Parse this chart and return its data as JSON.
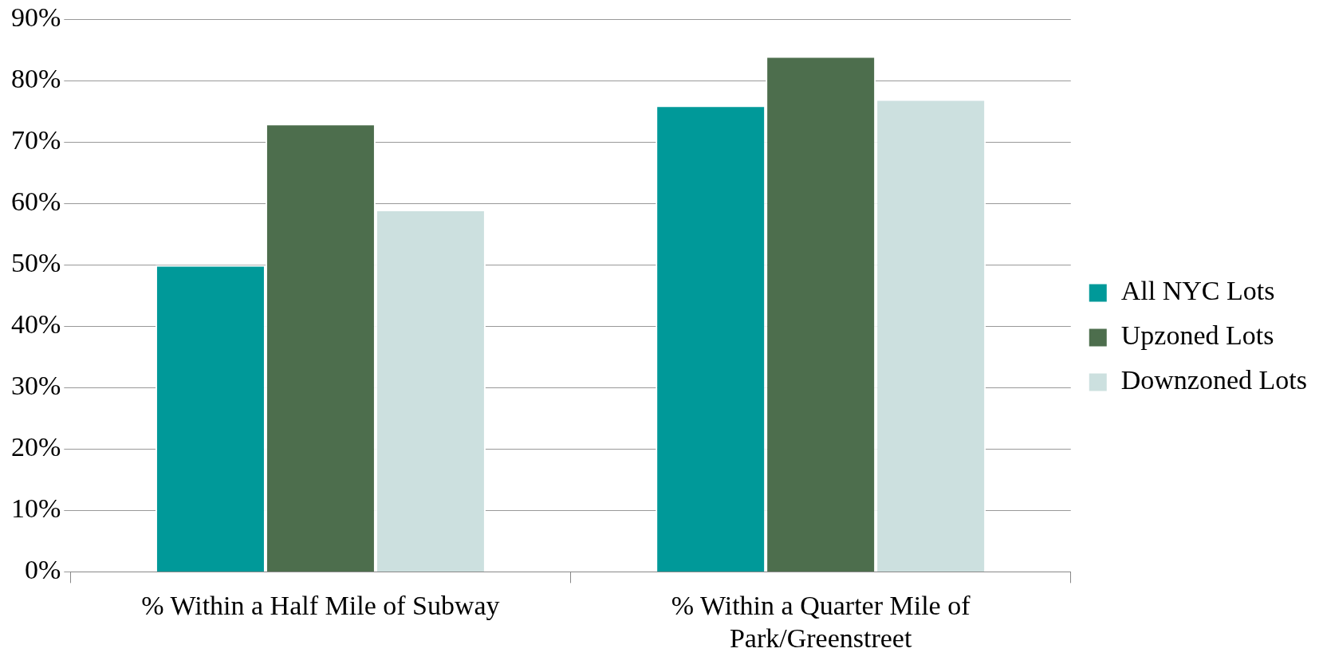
{
  "chart_data": {
    "type": "bar",
    "categories": [
      "% Within a Half Mile of Subway",
      "% Within a Quarter Mile of Park/Greenstreet"
    ],
    "series": [
      {
        "name": "All NYC Lots",
        "color": "#009999",
        "values": [
          50,
          76
        ]
      },
      {
        "name": "Upzoned Lots",
        "color": "#4d6e4d",
        "values": [
          73,
          84
        ]
      },
      {
        "name": "Downzoned Lots",
        "color": "#cce0df",
        "values": [
          59,
          77
        ]
      }
    ],
    "ylim": [
      0,
      90
    ],
    "yticks": [
      {
        "value": 0,
        "label": "0%"
      },
      {
        "value": 10,
        "label": "10%"
      },
      {
        "value": 20,
        "label": "20%"
      },
      {
        "value": 30,
        "label": "30%"
      },
      {
        "value": 40,
        "label": "40%"
      },
      {
        "value": 50,
        "label": "50%"
      },
      {
        "value": 60,
        "label": "60%"
      },
      {
        "value": 70,
        "label": "70%"
      },
      {
        "value": 80,
        "label": "80%"
      },
      {
        "value": 90,
        "label": "90%"
      }
    ],
    "grid": "y",
    "legend": "right"
  }
}
